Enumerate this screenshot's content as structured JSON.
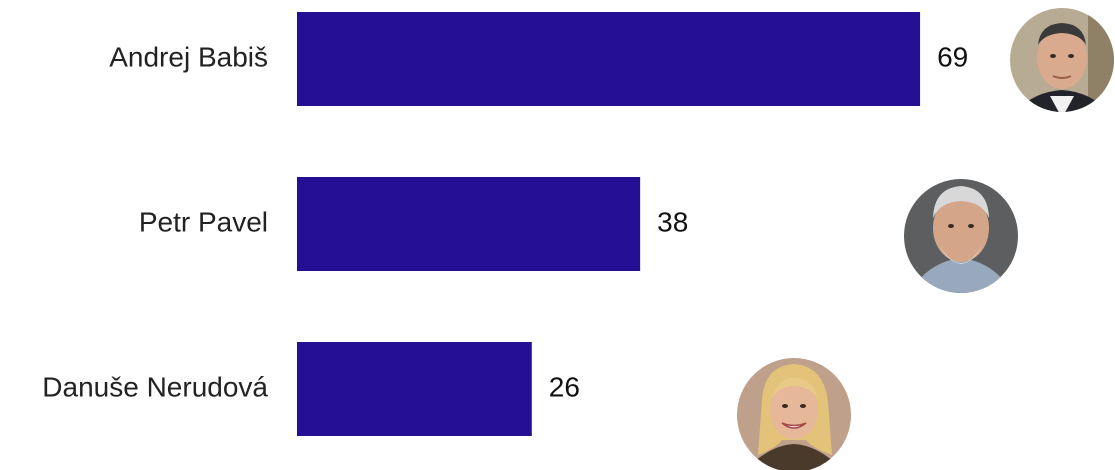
{
  "chart_data": {
    "type": "bar",
    "orientation": "horizontal",
    "categories": [
      "Andrej Babiš",
      "Petr Pavel",
      "Danuše Nerudová"
    ],
    "values": [
      69,
      38,
      26
    ],
    "value_labels": [
      "69",
      "38",
      "26"
    ],
    "grid": false,
    "legend": "none",
    "colors": {
      "bar": "#250f94"
    },
    "icons": [
      "portrait-andrej-babis",
      "portrait-petr-pavel",
      "portrait-danuse-nerudova"
    ]
  }
}
